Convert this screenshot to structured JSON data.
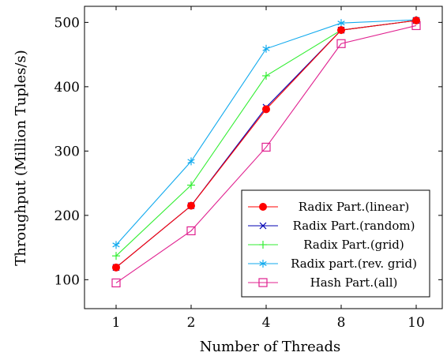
{
  "chart_data": {
    "type": "line",
    "title": "",
    "xlabel": "Number of Threads",
    "ylabel": "Throughput (Million Tuples/s)",
    "categories": [
      "1",
      "2",
      "4",
      "8",
      "10"
    ],
    "ylim": [
      55,
      525
    ],
    "yticks": [
      100,
      200,
      300,
      400,
      500
    ],
    "grid": false,
    "legend_position": "bottom-right",
    "series": [
      {
        "name": "Radix Part.(linear)",
        "color": "#ff0000",
        "marker": "filled-circle",
        "values": [
          119,
          215,
          365,
          488,
          503
        ]
      },
      {
        "name": "Radix Part.(random)",
        "color": "#0000b3",
        "marker": "x",
        "values": [
          119,
          215,
          368,
          488,
          503
        ]
      },
      {
        "name": "Radix Part.(grid)",
        "color": "#33ee33",
        "marker": "plus",
        "values": [
          137,
          247,
          417,
          488,
          503
        ]
      },
      {
        "name": "Radix part.(rev. grid)",
        "color": "#11aaee",
        "marker": "asterisk",
        "values": [
          154,
          284,
          459,
          499,
          504
        ]
      },
      {
        "name": "Hash Part.(all)",
        "color": "#e0208f",
        "marker": "open-square",
        "values": [
          95,
          176,
          306,
          467,
          495
        ]
      }
    ]
  }
}
